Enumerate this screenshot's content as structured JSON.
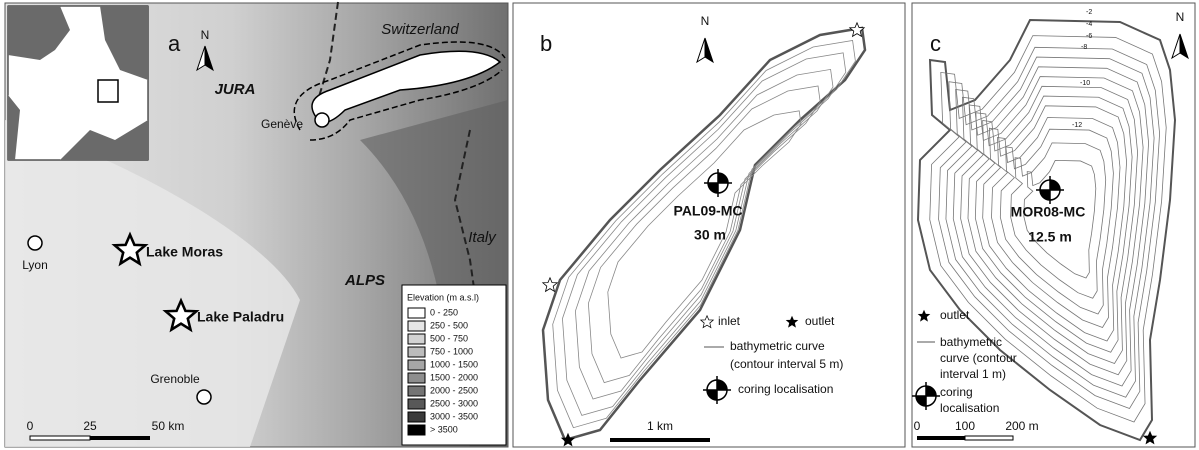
{
  "panel_a": {
    "label": "a",
    "north": "N",
    "places": [
      "Switzerland",
      "JURA",
      "Genève",
      "Italy",
      "Lyon",
      "Lake Moras",
      "ALPS",
      "Lake Paladru",
      "Grenoble"
    ],
    "legend": {
      "title": "Elevation (m a.s.l)",
      "items": [
        "0 - 250",
        "250 - 500",
        "500 - 750",
        "750 - 1000",
        "1000 - 1500",
        "1500 - 2000",
        "2000 - 2500",
        "2500 - 3000",
        "3000 - 3500",
        "> 3500"
      ]
    },
    "scale": [
      "0",
      "25",
      "50 km"
    ]
  },
  "panel_b": {
    "label": "b",
    "north": "N",
    "core": "PAL09-MC",
    "depth": "30 m",
    "legend": [
      "inlet",
      "outlet",
      "bathymetric curve",
      "(contour interval 5 m)",
      "coring localisation"
    ],
    "scale": "1 km"
  },
  "panel_c": {
    "label": "c",
    "north": "N",
    "contours": [
      "-2",
      "-4",
      "-6",
      "-8",
      "-10",
      "-12"
    ],
    "core": "MOR08-MC",
    "depth": "12.5 m",
    "legend": [
      "outlet",
      "bathymetric",
      "curve (contour",
      "interval 1 m)",
      "coring",
      "localisation"
    ],
    "scale": [
      "0",
      "100",
      "200 m"
    ]
  }
}
